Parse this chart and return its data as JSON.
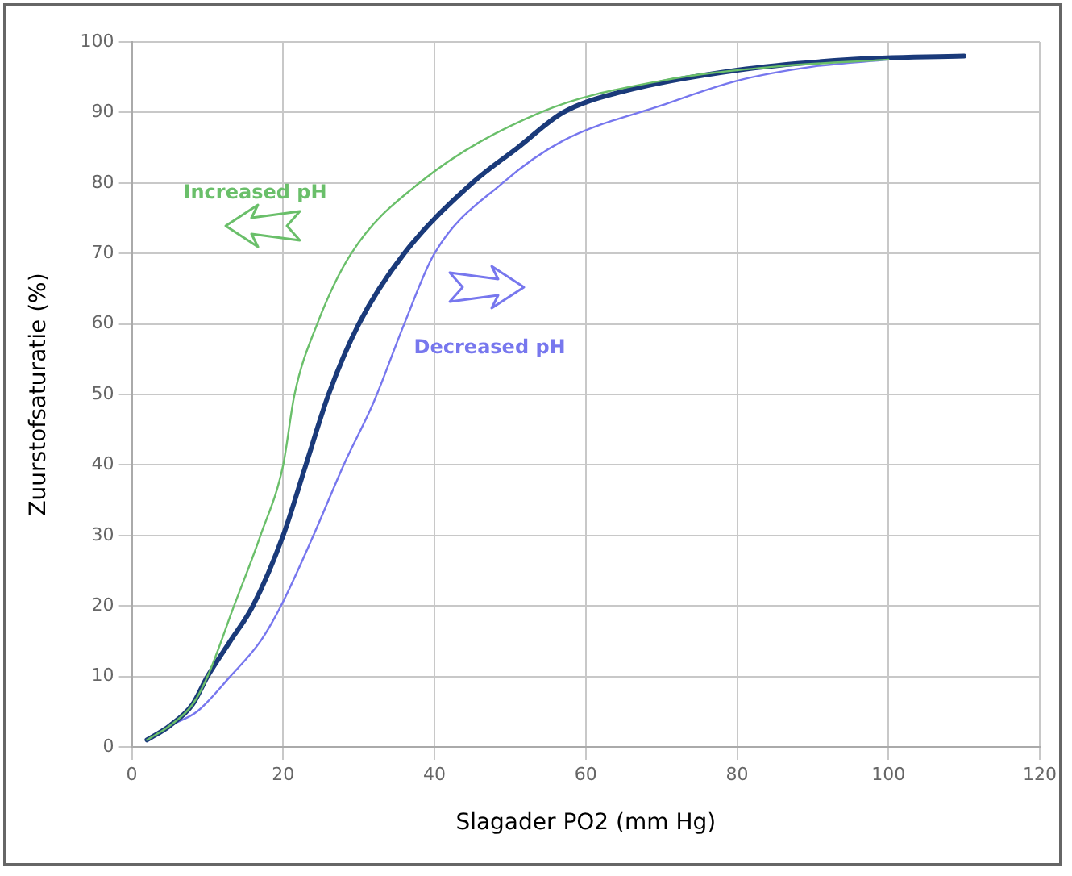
{
  "chart_data": {
    "type": "line",
    "xlabel": "Slagader PO2 (mm Hg)",
    "ylabel": "Zuurstofsaturatie (%)",
    "xlim": [
      0,
      120
    ],
    "xticks": [
      0,
      20,
      40,
      60,
      80,
      100,
      120
    ],
    "ylim": [
      0,
      100
    ],
    "yticks": [
      0,
      10,
      20,
      30,
      40,
      50,
      60,
      70,
      80,
      90,
      100
    ],
    "grid": true,
    "legend": false,
    "marker": "none",
    "line_style": "solid",
    "series": [
      {
        "name": "Increased pH",
        "color": "#6abf6a",
        "x": [
          2,
          5,
          8,
          10,
          13.5,
          17,
          20,
          21.5,
          24.5,
          29,
          38,
          54,
          70,
          85,
          100
        ],
        "values": [
          1,
          3,
          6,
          10,
          20,
          30,
          40,
          50,
          60,
          70,
          80,
          90,
          94.5,
          96.5,
          97.5
        ]
      },
      {
        "color": "#1a3a7a",
        "x": [
          2,
          5,
          8,
          10,
          13,
          16,
          20,
          23,
          26,
          30,
          36,
          45,
          51,
          57,
          65,
          80,
          95,
          110
        ],
        "values": [
          1,
          3,
          6,
          10,
          15,
          20,
          30,
          40,
          50,
          60,
          70,
          80,
          85,
          90,
          93,
          96,
          97.5,
          98
        ]
      },
      {
        "name": "Decreased pH",
        "color": "#7777ee",
        "x": [
          2,
          5,
          8.6,
          13,
          17,
          19.7,
          24,
          28,
          32,
          36,
          40,
          49,
          57,
          70,
          80,
          90,
          100
        ],
        "values": [
          1,
          3,
          5,
          10,
          15,
          20,
          30,
          40,
          49,
          60,
          70,
          80,
          86,
          91,
          94.5,
          96.5,
          97.5
        ]
      }
    ]
  }
}
